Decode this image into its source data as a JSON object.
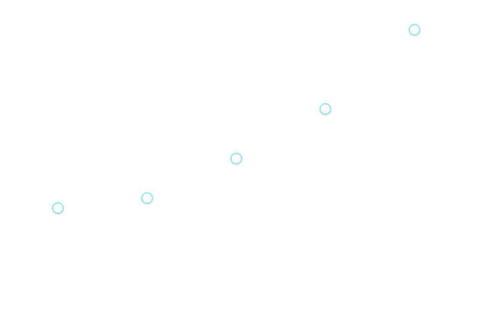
{
  "chart_data": {
    "type": "scatter",
    "title": "",
    "xlabel": "",
    "ylabel": "",
    "grid": false,
    "legend": "none",
    "series": [
      {
        "color": "#7fe3ea",
        "points": [
          {
            "x": 1,
            "y": 1.0
          },
          {
            "x": 2,
            "y": 1.5
          },
          {
            "x": 3,
            "y": 3.5
          },
          {
            "x": 4,
            "y": 6.0
          },
          {
            "x": 5,
            "y": 10.0
          }
        ]
      }
    ],
    "xlim": [
      0.35,
      5.7
    ],
    "ylim": [
      -4.6,
      11.5
    ]
  }
}
